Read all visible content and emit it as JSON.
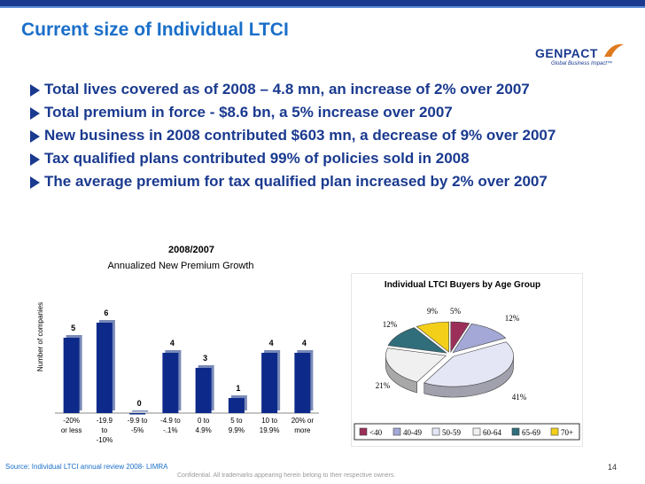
{
  "slide": {
    "title": "Current size of Individual LTCI",
    "bullets": [
      "Total lives covered as of 2008 – 4.8 mn, an increase of 2% over 2007",
      "Total premium in force - $8.6 bn, a 5% increase over 2007",
      "New business in 2008 contributed $603 mn, a decrease of 9% over 2007",
      "Tax qualified plans contributed 99% of policies sold in 2008",
      "The average premium for tax qualified plan increased by 2% over 2007"
    ],
    "source": "Source: Individual LTCI annual review 2008- LIMRA",
    "confidential": "Confidential.  All trademarks appearing herein belong to their respective owners.",
    "page_number": "14"
  },
  "logo": {
    "name": "GENPACT",
    "tagline": "Global Business Impact™"
  },
  "colors": {
    "title": "#1a6fc9",
    "bullet_text": "#1a3a8f",
    "bar_fill": "#0d2a8a",
    "top_bar": "#1a3a8f"
  },
  "chart_data": [
    {
      "type": "bar",
      "title": "2008/2007",
      "subtitle": "Annualized New Premium Growth",
      "ylabel": "Number of companies",
      "categories": [
        "-20% or less",
        "-19.9 to -10%",
        "-9.9 to -5%",
        "-4.9 to -.1%",
        "0 to 4.9%",
        "5 to 9.9%",
        "10 to 19.9%",
        "20% or more"
      ],
      "category_lines": [
        [
          "-20%",
          "or less"
        ],
        [
          "-19.9",
          "to",
          "-10%"
        ],
        [
          "-9.9 to",
          "-5%"
        ],
        [
          "-4.9 to",
          "-.1%"
        ],
        [
          "0 to",
          "4.9%"
        ],
        [
          "5 to",
          "9.9%"
        ],
        [
          "10 to",
          "19.9%"
        ],
        [
          "20% or",
          "more"
        ]
      ],
      "values": [
        5,
        6,
        0,
        4,
        3,
        1,
        4,
        4
      ],
      "ylim": [
        0,
        6
      ],
      "grid": false
    },
    {
      "type": "pie",
      "title": "Individual LTCI Buyers by Age Group",
      "labels": [
        "<40",
        "40-49",
        "50-59",
        "60-64",
        "65-69",
        "70+"
      ],
      "values": [
        5,
        12,
        41,
        21,
        12,
        9
      ],
      "value_labels": [
        "5%",
        "12%",
        "41%",
        "21%",
        "12%",
        "9%"
      ],
      "colors": [
        "#9b2f5a",
        "#a3a8d6",
        "#e4e6f5",
        "#f0f0f0",
        "#2f6e7a",
        "#f3cf1a"
      ],
      "legend_position": "bottom"
    }
  ]
}
